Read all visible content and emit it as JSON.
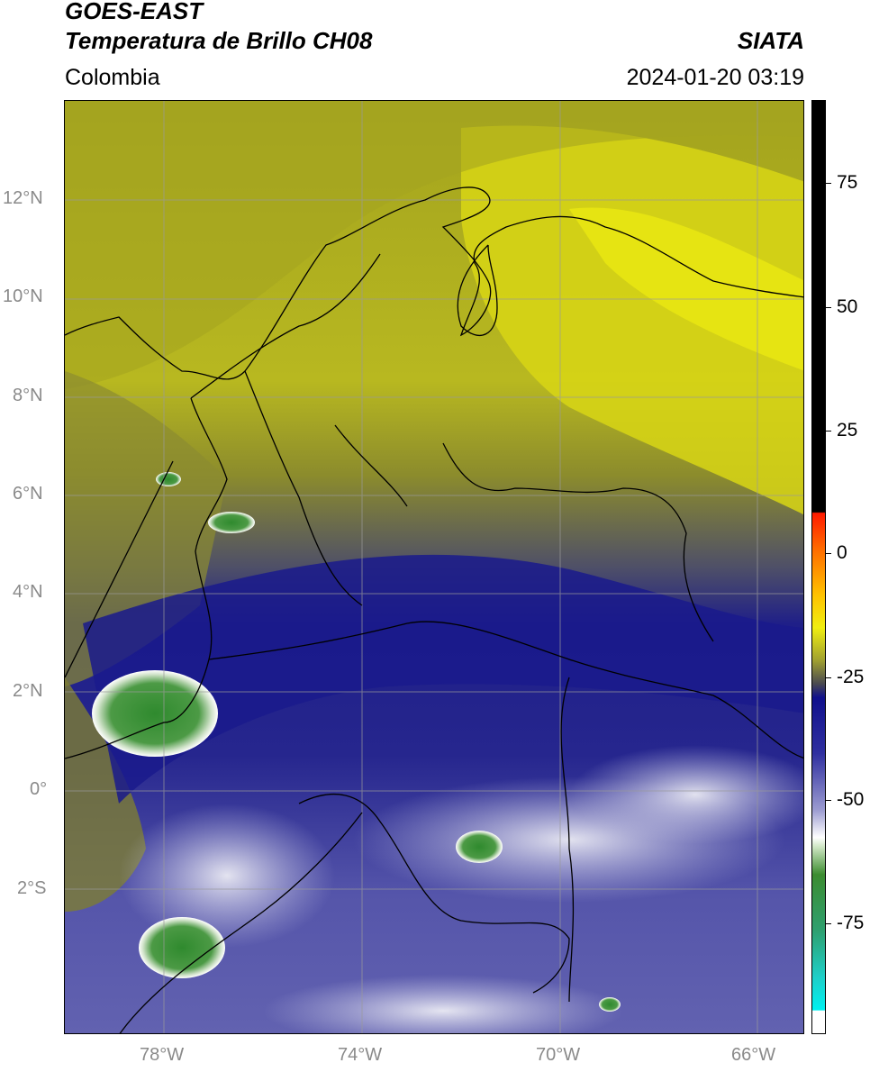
{
  "header": {
    "satellite": "GOES-EAST",
    "product": "Temperatura de Brillo CH08",
    "region": "Colombia",
    "agency": "SIATA",
    "datetime": "2024-01-20 03:19"
  },
  "map": {
    "lat_labels": [
      "12°N",
      "10°N",
      "8°N",
      "6°N",
      "4°N",
      "2°N",
      "0°",
      "2°S"
    ],
    "lon_labels": [
      "78°W",
      "74°W",
      "70°W",
      "66°W"
    ],
    "extent": {
      "lon_min": -79.9,
      "lon_max": -65.0,
      "lat_min": -5.2,
      "lat_max": 14.0
    },
    "colors": {
      "warm_olive": "#8f8f28",
      "yellow": "#e3e010",
      "deep_blue": "#17178a",
      "mid_blue": "#4a4aa8",
      "light_cloud": "#e6e6f0",
      "cold_green": "#3f8f3a",
      "border": "#000000",
      "grid": "#9a9a9a"
    }
  },
  "colorbar": {
    "ticks": [
      "75",
      "50",
      "25",
      "0",
      "-25",
      "-50",
      "-75"
    ],
    "tick_values": [
      75,
      50,
      25,
      0,
      -25,
      -50,
      -75
    ],
    "range": [
      -95,
      90
    ]
  }
}
